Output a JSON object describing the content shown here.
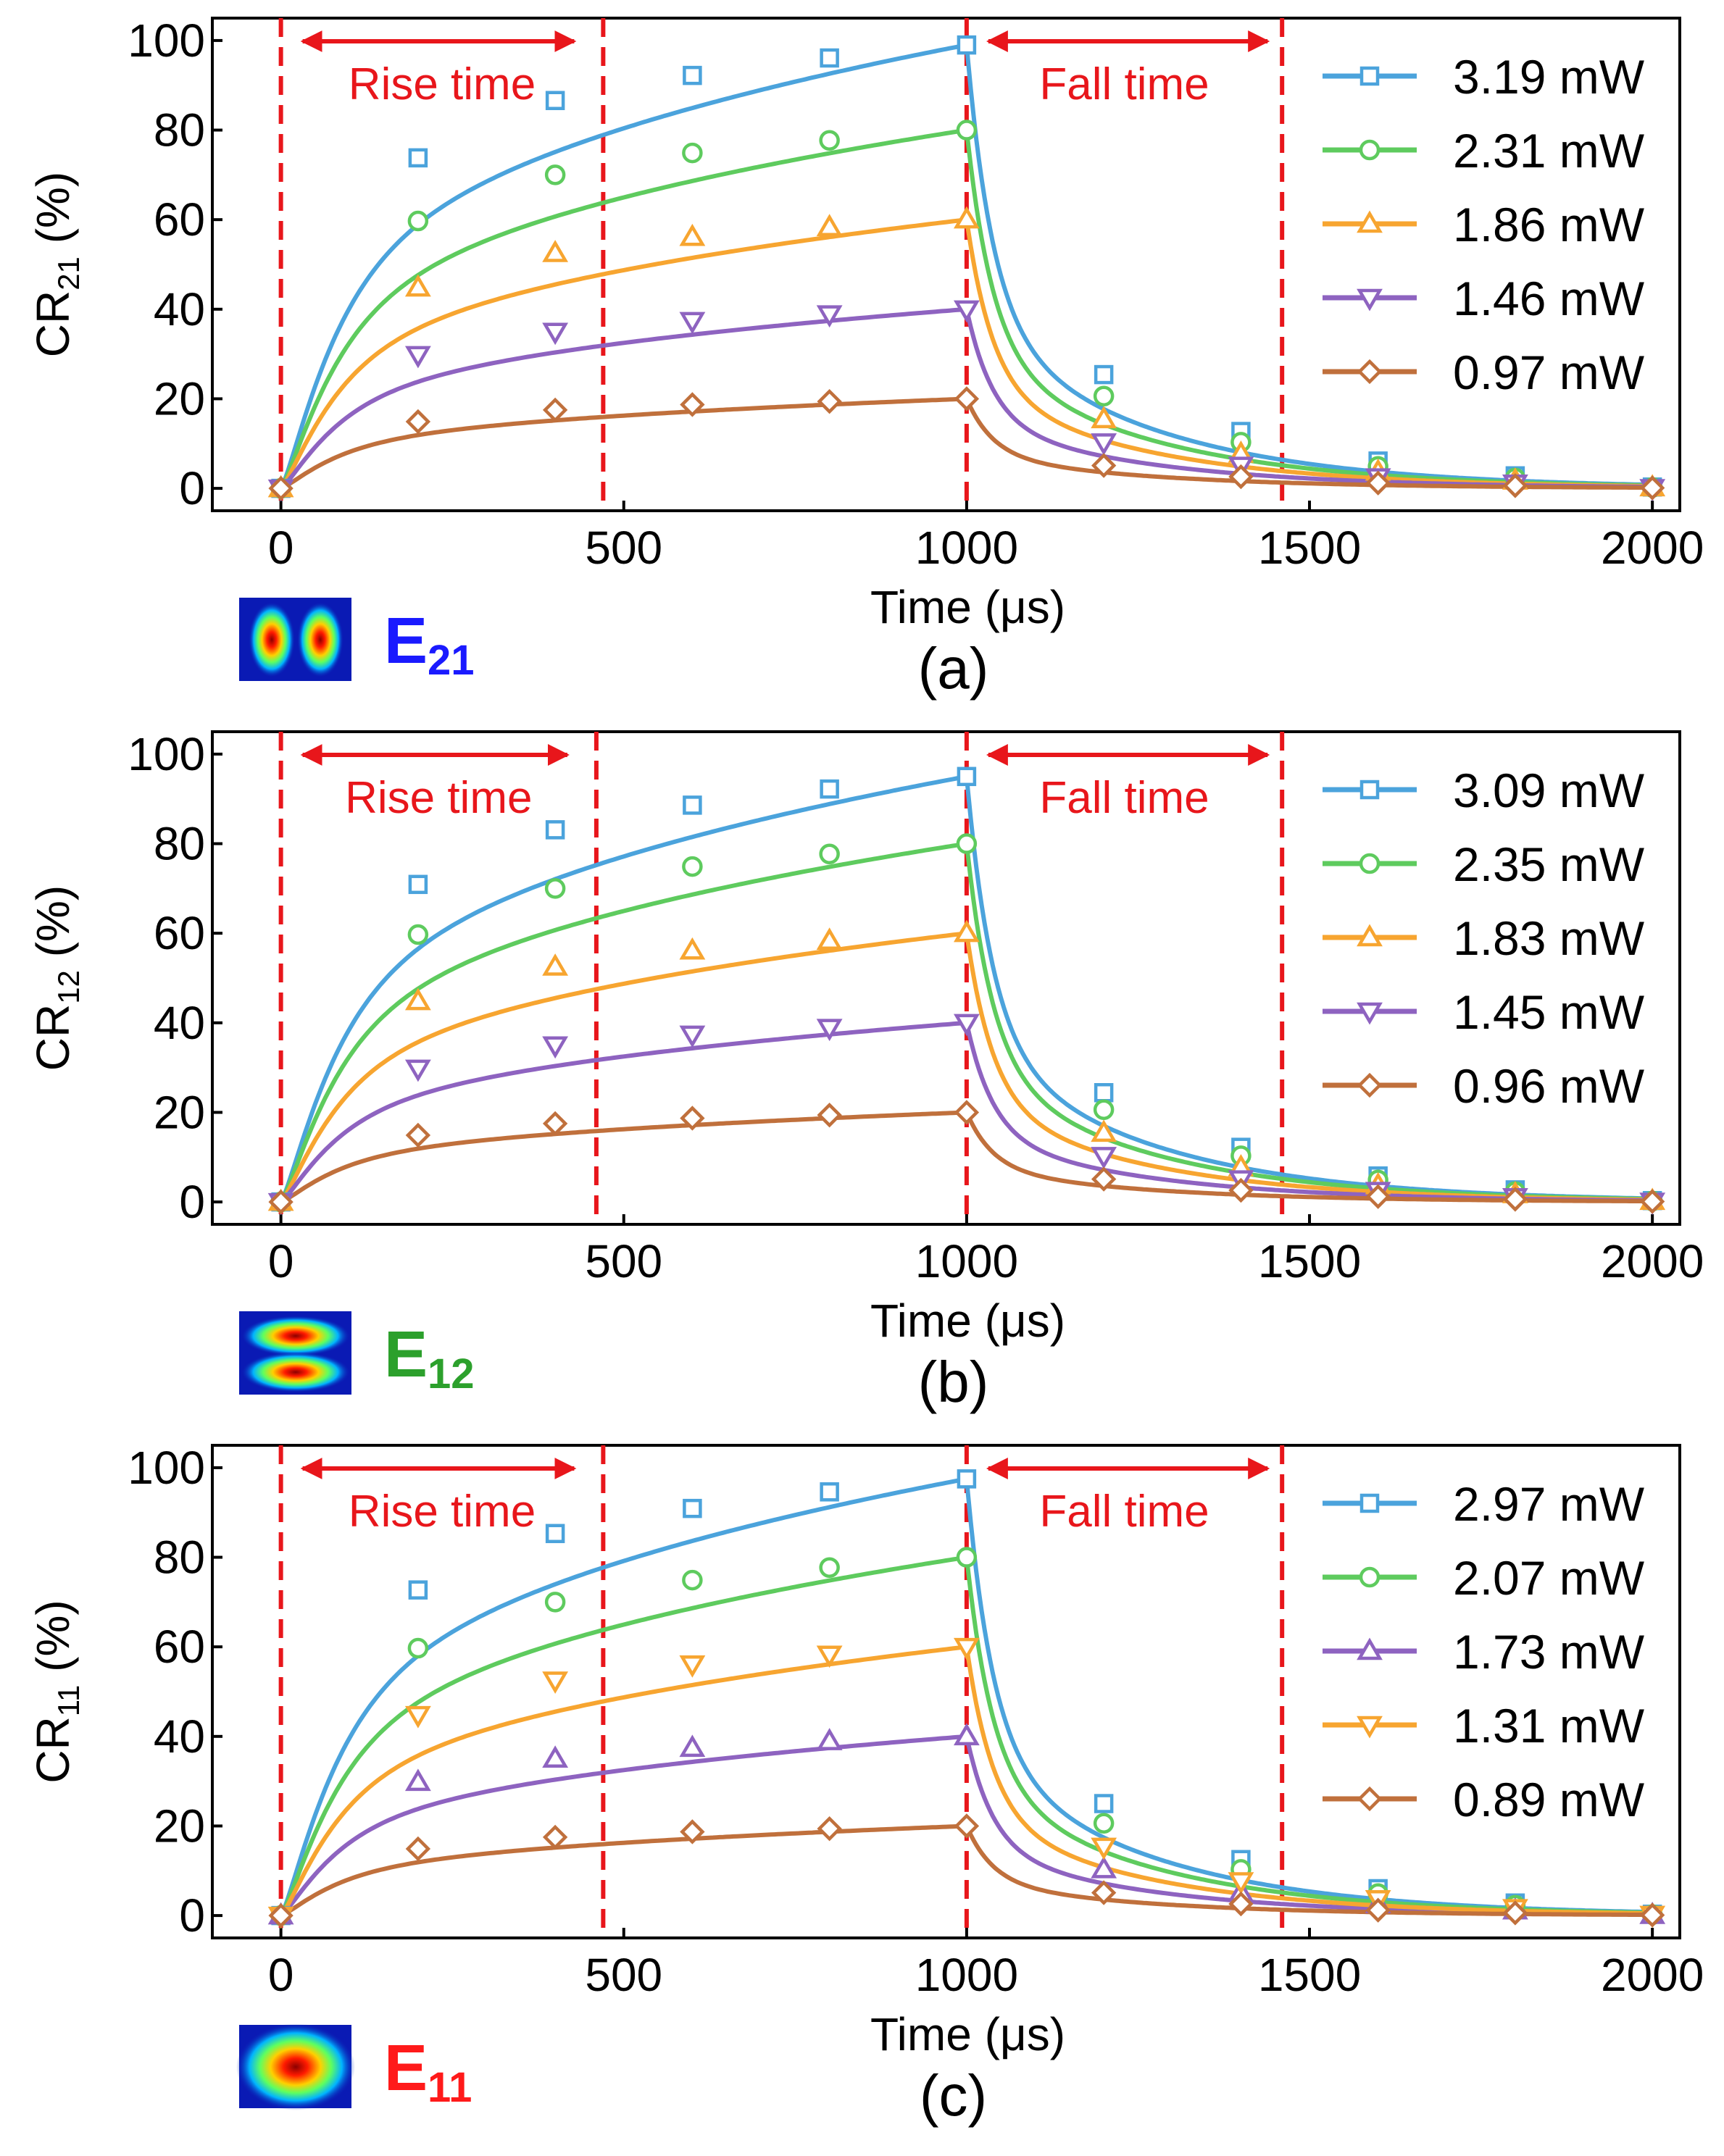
{
  "figure": {
    "panel_count": 3
  },
  "chart_data": [
    {
      "type": "line",
      "panel_label": "(a)",
      "ylabel_main": "CR",
      "ylabel_sub": "21",
      "ylabel_suffix": " (%)",
      "xlabel": "Time (μs)",
      "xlim": [
        -100,
        2040
      ],
      "ylim": [
        -5,
        105
      ],
      "xticks": [
        0,
        500,
        1000,
        1500,
        2000
      ],
      "yticks": [
        0,
        20,
        40,
        60,
        80,
        100
      ],
      "x": [
        0,
        200,
        400,
        600,
        800,
        1000,
        1200,
        1400,
        1600,
        1800,
        2000
      ],
      "vlines": [
        0,
        470,
        1000,
        1460
      ],
      "annotations": {
        "rise": "Rise time",
        "fall": "Fall time"
      },
      "mode": {
        "main": "E",
        "sub": "21",
        "color": "#1a1aff",
        "pattern": "two-lobes-horizontal"
      },
      "series": [
        {
          "name": "3.19 mW",
          "color": "#4ba3dc",
          "marker": "square",
          "amplitude": 99,
          "values": [
            0,
            73.8,
            86.6,
            92.2,
            96.1,
            99.0,
            25.4,
            12.7,
            6.1,
            2.8,
            0.3
          ]
        },
        {
          "name": "2.31 mW",
          "color": "#5ecb5e",
          "marker": "circle",
          "amplitude": 80,
          "values": [
            0,
            59.7,
            70.0,
            74.9,
            77.7,
            80.0,
            20.6,
            10.3,
            4.9,
            2.3,
            0.2
          ]
        },
        {
          "name": "1.86 mW",
          "color": "#f7a530",
          "marker": "triangle-up",
          "amplitude": 60,
          "values": [
            0,
            44.8,
            52.5,
            56.1,
            58.3,
            60.0,
            15.4,
            7.7,
            3.7,
            1.7,
            0.2
          ]
        },
        {
          "name": "1.46 mW",
          "color": "#8e63c0",
          "marker": "triangle-down",
          "amplitude": 40,
          "values": [
            0,
            29.8,
            35.0,
            37.4,
            38.9,
            40.0,
            10.3,
            5.1,
            2.5,
            1.1,
            0.1
          ]
        },
        {
          "name": "0.97 mW",
          "color": "#c0703c",
          "marker": "diamond",
          "amplitude": 20,
          "values": [
            0,
            14.9,
            17.5,
            18.7,
            19.4,
            20.0,
            5.1,
            2.6,
            1.2,
            0.6,
            0.1
          ]
        }
      ]
    },
    {
      "type": "line",
      "panel_label": "(b)",
      "ylabel_main": "CR",
      "ylabel_sub": "12",
      "ylabel_suffix": " (%)",
      "xlabel": "Time (μs)",
      "xlim": [
        -100,
        2040
      ],
      "ylim": [
        -5,
        105
      ],
      "xticks": [
        0,
        500,
        1000,
        1500,
        2000
      ],
      "yticks": [
        0,
        20,
        40,
        60,
        80,
        100
      ],
      "x": [
        0,
        200,
        400,
        600,
        800,
        1000,
        1200,
        1400,
        1600,
        1800,
        2000
      ],
      "vlines": [
        0,
        460,
        1000,
        1460
      ],
      "annotations": {
        "rise": "Rise time",
        "fall": "Fall time"
      },
      "mode": {
        "main": "E",
        "sub": "12",
        "color": "#2ca02c",
        "pattern": "two-lobes-vertical"
      },
      "series": [
        {
          "name": "3.09 mW",
          "color": "#4ba3dc",
          "marker": "square",
          "amplitude": 95,
          "values": [
            0,
            70.9,
            83.1,
            88.6,
            92.2,
            95.0,
            24.4,
            12.2,
            5.8,
            2.7,
            0.3
          ]
        },
        {
          "name": "2.35 mW",
          "color": "#5ecb5e",
          "marker": "circle",
          "amplitude": 80,
          "values": [
            0,
            59.7,
            70.0,
            74.9,
            77.7,
            80.0,
            20.6,
            10.3,
            4.9,
            2.3,
            0.2
          ]
        },
        {
          "name": "1.83 mW",
          "color": "#f7a530",
          "marker": "triangle-up",
          "amplitude": 60,
          "values": [
            0,
            44.8,
            52.5,
            56.1,
            58.3,
            60.0,
            15.4,
            7.7,
            3.7,
            1.7,
            0.2
          ]
        },
        {
          "name": "1.45 mW",
          "color": "#8e63c0",
          "marker": "triangle-down",
          "amplitude": 40,
          "values": [
            0,
            29.8,
            35.0,
            37.4,
            38.9,
            40.0,
            10.3,
            5.1,
            2.5,
            1.1,
            0.1
          ]
        },
        {
          "name": "0.96 mW",
          "color": "#c0703c",
          "marker": "diamond",
          "amplitude": 20,
          "values": [
            0,
            14.9,
            17.5,
            18.7,
            19.4,
            20.0,
            5.1,
            2.6,
            1.2,
            0.6,
            0.1
          ]
        }
      ]
    },
    {
      "type": "line",
      "panel_label": "(c)",
      "ylabel_main": "CR",
      "ylabel_sub": "11",
      "ylabel_suffix": " (%)",
      "xlabel": "Time (μs)",
      "xlim": [
        -100,
        2040
      ],
      "ylim": [
        -5,
        105
      ],
      "xticks": [
        0,
        500,
        1000,
        1500,
        2000
      ],
      "yticks": [
        0,
        20,
        40,
        60,
        80,
        100
      ],
      "x": [
        0,
        200,
        400,
        600,
        800,
        1000,
        1200,
        1400,
        1600,
        1800,
        2000
      ],
      "vlines": [
        0,
        470,
        1000,
        1460
      ],
      "annotations": {
        "rise": "Rise time",
        "fall": "Fall time"
      },
      "mode": {
        "main": "E",
        "sub": "11",
        "color": "#ff1a1a",
        "pattern": "single-lobe"
      },
      "series": [
        {
          "name": "2.97 mW",
          "color": "#4ba3dc",
          "marker": "square",
          "amplitude": 97.5,
          "values": [
            0,
            72.7,
            85.3,
            90.9,
            94.6,
            97.5,
            25.0,
            12.5,
            6.0,
            2.8,
            0.3
          ]
        },
        {
          "name": "2.07 mW",
          "color": "#5ecb5e",
          "marker": "circle",
          "amplitude": 80,
          "values": [
            0,
            59.7,
            70.0,
            74.9,
            77.7,
            80.0,
            20.6,
            10.3,
            4.9,
            2.3,
            0.2
          ]
        },
        {
          "name": "1.73 mW",
          "color": "#8e63c0",
          "marker": "triangle-up",
          "amplitude": 40,
          "values": [
            0,
            29.8,
            35.0,
            37.4,
            38.9,
            40.0,
            10.3,
            5.1,
            2.5,
            1.1,
            0.1
          ]
        },
        {
          "name": "1.31 mW",
          "color": "#f7a530",
          "marker": "triangle-down",
          "amplitude": 60,
          "values": [
            0,
            44.8,
            52.5,
            56.1,
            58.3,
            60.0,
            15.4,
            7.7,
            3.7,
            1.7,
            0.2
          ]
        },
        {
          "name": "0.89 mW",
          "color": "#c0703c",
          "marker": "diamond",
          "amplitude": 20,
          "values": [
            0,
            14.9,
            17.5,
            18.7,
            19.4,
            20.0,
            5.1,
            2.6,
            1.2,
            0.6,
            0.1
          ]
        }
      ]
    }
  ]
}
